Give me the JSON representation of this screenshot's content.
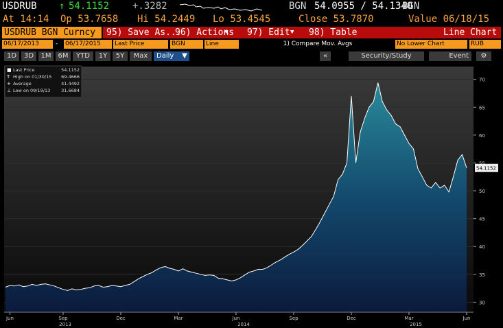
{
  "quote": {
    "ticker": "USDRUB",
    "last": "54.1152",
    "change": "+.3282",
    "source": "BGN",
    "bid_ask": "54.0955 / 54.1340",
    "source2": "BGN"
  },
  "stats": [
    "At 14:14",
    "Op 53.7658",
    "Hi 54.2449",
    "Lo 53.4545",
    "Close 53.7870",
    "Value 06/18/15"
  ],
  "toolbar": {
    "security": "USDRUB BGN Curncy",
    "menus": [
      "95) Save As...",
      "96) Actions",
      "97) Edit",
      "98) Table"
    ],
    "view": "Line Chart"
  },
  "settings": [
    "06/17/2013",
    "-",
    "06/17/2015",
    "Last Price",
    "BGN",
    "Line",
    "1) Compare Mov. Avgs",
    "No Lower Chart",
    "RUB"
  ],
  "periods": [
    "1D",
    "3D",
    "1M",
    "6M",
    "YTD",
    "1Y",
    "5Y",
    "Max",
    "Daily"
  ],
  "tools": [
    "«",
    "Security/Study",
    "Event"
  ],
  "chart_data": {
    "type": "area",
    "categories": [
      null,
      "Jun",
      null,
      null,
      null,
      null,
      null,
      null,
      null,
      null,
      null,
      null,
      null,
      "Sep",
      null,
      null,
      null,
      null,
      null,
      null,
      null,
      null,
      null,
      null,
      null,
      null,
      "Dec",
      null,
      null,
      null,
      null,
      null,
      null,
      null,
      null,
      null,
      null,
      null,
      null,
      "Mar",
      null,
      null,
      null,
      null,
      null,
      null,
      null,
      null,
      null,
      null,
      null,
      null,
      "Jun",
      null,
      null,
      null,
      null,
      null,
      null,
      null,
      null,
      null,
      null,
      null,
      null,
      "Sep",
      null,
      null,
      null,
      null,
      null,
      null,
      null,
      null,
      null,
      null,
      null,
      null,
      "Dec",
      null,
      null,
      null,
      null,
      null,
      null,
      null,
      null,
      null,
      null,
      null,
      null,
      "Mar",
      null,
      null,
      null,
      null,
      null,
      null,
      null,
      null,
      null,
      null,
      null,
      null,
      "Jun"
    ],
    "series": [
      {
        "name": "Last Price",
        "color": "#ffffff",
        "values": [
          32.7,
          33.0,
          32.9,
          33.1,
          32.8,
          32.9,
          33.2,
          33.0,
          33.2,
          33.3,
          33.1,
          32.9,
          32.6,
          32.3,
          32.1,
          32.4,
          32.2,
          32.3,
          32.5,
          32.6,
          32.9,
          33.0,
          32.7,
          32.8,
          33.0,
          32.9,
          32.8,
          33.0,
          33.2,
          33.7,
          34.2,
          34.6,
          35.0,
          35.3,
          35.8,
          36.2,
          36.4,
          36.1,
          35.9,
          35.6,
          36.0,
          35.6,
          35.4,
          35.2,
          35.0,
          34.8,
          34.9,
          34.8,
          34.3,
          34.2,
          34.0,
          33.8,
          34.0,
          34.4,
          34.9,
          35.4,
          35.6,
          35.9,
          35.9,
          36.2,
          36.7,
          37.2,
          37.6,
          38.1,
          38.6,
          39.0,
          39.5,
          40.2,
          41.0,
          41.8,
          43.1,
          44.5,
          46.0,
          47.5,
          49.0,
          52.0,
          53.0,
          55.0,
          67.0,
          55.0,
          60.5,
          63.0,
          65.0,
          66.0,
          69.4,
          66.0,
          64.5,
          63.5,
          62.0,
          61.5,
          60.0,
          58.5,
          57.5,
          54.0,
          52.5,
          51.0,
          50.5,
          51.5,
          50.5,
          51.0,
          49.8,
          52.5,
          55.5,
          56.5,
          54.1
        ]
      }
    ],
    "ylim": [
      28.2,
      72.3
    ],
    "yticks": [
      30,
      35,
      40,
      45,
      50,
      55,
      60,
      65,
      70
    ],
    "years": [
      "2013",
      "2014",
      "2015"
    ],
    "last_value": "54.1152",
    "legend": [
      {
        "label": "High on 01/30/15",
        "value": "69.4666"
      },
      {
        "label": "Average",
        "value": "41.4492"
      },
      {
        "label": "Low on 09/19/13",
        "value": "31.6684"
      }
    ]
  }
}
